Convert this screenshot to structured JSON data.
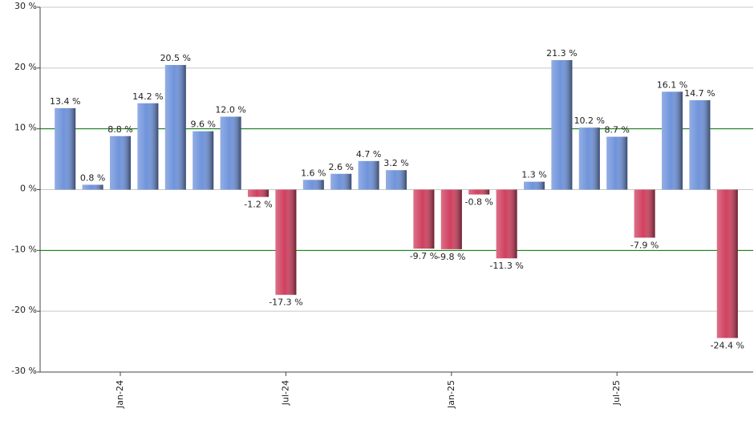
{
  "chart_data": {
    "type": "bar",
    "categories": [
      null,
      null,
      "Jan-24",
      null,
      null,
      null,
      null,
      null,
      "Jul-24",
      null,
      null,
      null,
      null,
      null,
      "Jan-25",
      null,
      null,
      null,
      null,
      null,
      "Jul-25",
      null,
      null,
      null,
      null
    ],
    "values": [
      13.4,
      0.8,
      8.8,
      14.2,
      20.5,
      9.6,
      12.0,
      -1.2,
      -17.3,
      1.6,
      2.6,
      4.7,
      3.2,
      -9.7,
      -9.8,
      -0.8,
      -11.3,
      1.3,
      21.3,
      10.2,
      8.7,
      -7.9,
      16.1,
      14.7,
      -24.4
    ],
    "value_labels": [
      "13.4 %",
      "0.8 %",
      "8.8 %",
      "14.2 %",
      "20.5 %",
      "9.6 %",
      "12.0 %",
      "-1.2 %",
      "-17.3 %",
      "1.6 %",
      "2.6 %",
      "4.7 %",
      "3.2 %",
      "-9.7 %",
      "-9.8 %",
      "-0.8 %",
      "-11.3 %",
      "1.3 %",
      "21.3 %",
      "10.2 %",
      "8.7 %",
      "-7.9 %",
      "16.1 %",
      "14.7 %",
      "-24.4 %"
    ],
    "positive_color": "#6f93db",
    "negative_color": "#d0405f",
    "ylim": [
      -30,
      30
    ],
    "yticks": [
      {
        "value": -30,
        "label": "-30 %"
      },
      {
        "value": -20,
        "label": "-20 %"
      },
      {
        "value": -10,
        "label": "-10 %"
      },
      {
        "value": 0,
        "label": "0 %"
      },
      {
        "value": 10,
        "label": "10 %"
      },
      {
        "value": 20,
        "label": "20 %"
      },
      {
        "value": 30,
        "label": "30 %"
      }
    ],
    "grid": true,
    "reference_lines": {
      "values": [
        10,
        -10
      ],
      "color": "#007a00"
    }
  }
}
